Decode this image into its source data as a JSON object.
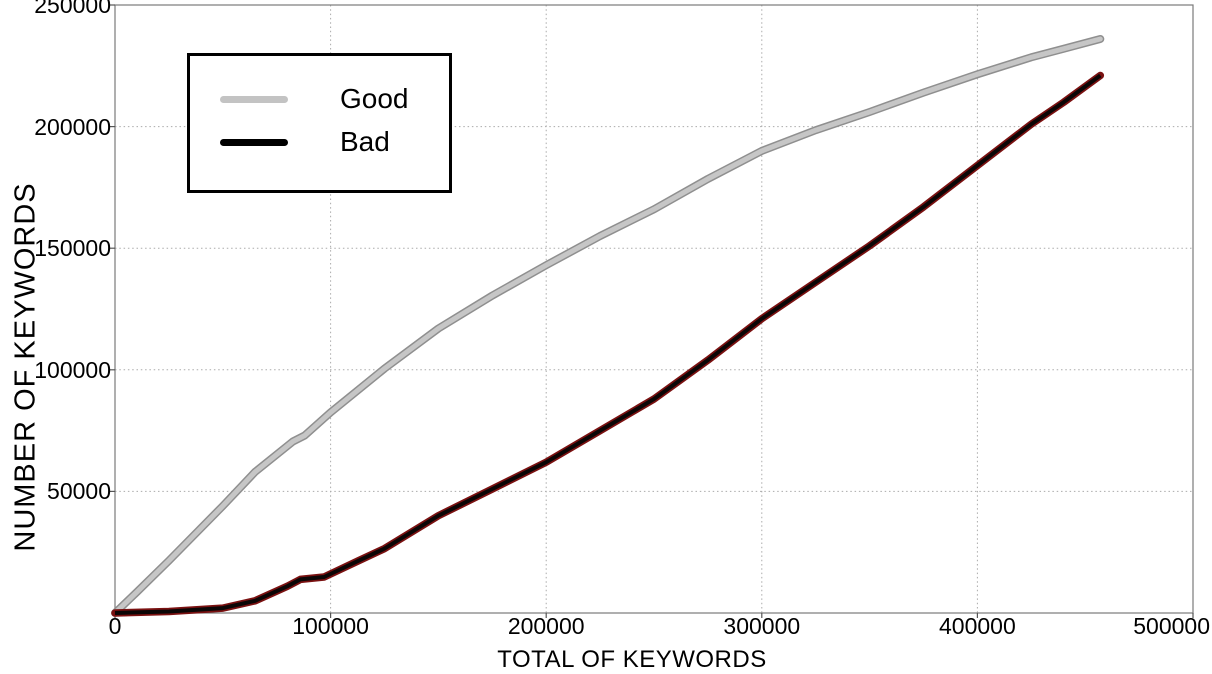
{
  "chart_data": {
    "type": "line",
    "title": "",
    "xlabel": "TOTAL OF KEYWORDS",
    "ylabel": "NUMBER OF KEYWORDS",
    "xlim": [
      0,
      500000
    ],
    "ylim": [
      0,
      250000
    ],
    "x_ticks": [
      0,
      100000,
      200000,
      300000,
      400000,
      500000
    ],
    "y_ticks": [
      50000,
      100000,
      150000,
      200000,
      250000
    ],
    "grid": "dotted",
    "grid_color": "#ababab",
    "frame_color": "#7a7a7a",
    "tick_color": "#555555",
    "legend": {
      "position": "upper-left",
      "entries": [
        {
          "label": "Good",
          "color": "#c3c3c3"
        },
        {
          "label": "Bad",
          "color": "#000000"
        }
      ]
    },
    "series": [
      {
        "name": "Good",
        "core_color": "#c6c6c6",
        "edge_color": "#8f8f8f",
        "points": [
          [
            0,
            0
          ],
          [
            10000,
            8500
          ],
          [
            25000,
            21500
          ],
          [
            50000,
            44000
          ],
          [
            65000,
            58000
          ],
          [
            82500,
            70500
          ],
          [
            88000,
            73000
          ],
          [
            100000,
            82500
          ],
          [
            125000,
            100500
          ],
          [
            150000,
            117000
          ],
          [
            175000,
            130500
          ],
          [
            200000,
            143000
          ],
          [
            225000,
            155000
          ],
          [
            250000,
            166000
          ],
          [
            275000,
            178500
          ],
          [
            300000,
            190000
          ],
          [
            325000,
            198500
          ],
          [
            350000,
            206000
          ],
          [
            375000,
            214000
          ],
          [
            400000,
            221500
          ],
          [
            425000,
            228500
          ],
          [
            440000,
            232000
          ],
          [
            457000,
            236000
          ]
        ]
      },
      {
        "name": "Bad",
        "core_color": "#0b0606",
        "edge_color": "#7a1111",
        "points": [
          [
            0,
            0
          ],
          [
            25000,
            600
          ],
          [
            50000,
            2000
          ],
          [
            65000,
            5000
          ],
          [
            80000,
            11000
          ],
          [
            86000,
            13800
          ],
          [
            97000,
            14800
          ],
          [
            113000,
            21500
          ],
          [
            125000,
            26500
          ],
          [
            150000,
            40000
          ],
          [
            175000,
            51000
          ],
          [
            200000,
            62000
          ],
          [
            225000,
            75000
          ],
          [
            250000,
            88000
          ],
          [
            275000,
            104000
          ],
          [
            300000,
            121000
          ],
          [
            325000,
            136000
          ],
          [
            350000,
            151000
          ],
          [
            375000,
            167000
          ],
          [
            400000,
            184000
          ],
          [
            425000,
            201000
          ],
          [
            440000,
            210000
          ],
          [
            457000,
            221000
          ]
        ]
      }
    ]
  }
}
